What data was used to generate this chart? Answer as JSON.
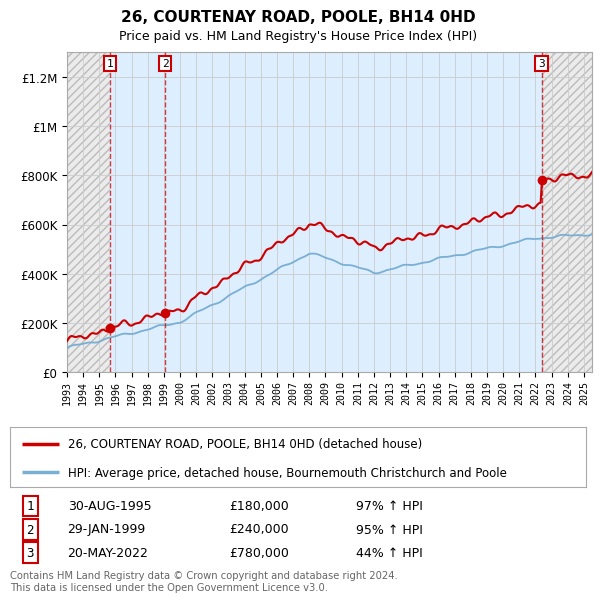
{
  "title": "26, COURTENAY ROAD, POOLE, BH14 0HD",
  "subtitle": "Price paid vs. HM Land Registry's House Price Index (HPI)",
  "ylim": [
    0,
    1300000
  ],
  "yticks": [
    0,
    200000,
    400000,
    600000,
    800000,
    1000000,
    1200000
  ],
  "ytick_labels": [
    "£0",
    "£200K",
    "£400K",
    "£600K",
    "£800K",
    "£1M",
    "£1.2M"
  ],
  "x_start_year": 1993,
  "x_end_year": 2025,
  "sale_year1": 1995.667,
  "sale_year2": 1999.083,
  "sale_year3": 2022.375,
  "sale_prices": [
    180000,
    240000,
    780000
  ],
  "sale_labels": [
    "1",
    "2",
    "3"
  ],
  "hpi_line_color": "#7aafd4",
  "sale_line_color": "#cc0000",
  "sale_dot_color": "#cc0000",
  "shaded_color": "#ddeeff",
  "hatch_color": "#d8d8d8",
  "legend_label_sale": "26, COURTENAY ROAD, POOLE, BH14 0HD (detached house)",
  "legend_label_hpi": "HPI: Average price, detached house, Bournemouth Christchurch and Poole",
  "table_rows": [
    [
      "1",
      "30-AUG-1995",
      "£180,000",
      "97% ↑ HPI"
    ],
    [
      "2",
      "29-JAN-1999",
      "£240,000",
      "95% ↑ HPI"
    ],
    [
      "3",
      "20-MAY-2022",
      "£780,000",
      "44% ↑ HPI"
    ]
  ],
  "footer": "Contains HM Land Registry data © Crown copyright and database right 2024.\nThis data is licensed under the Open Government Licence v3.0.",
  "bg_color": "#ffffff",
  "grid_color": "#cccccc"
}
